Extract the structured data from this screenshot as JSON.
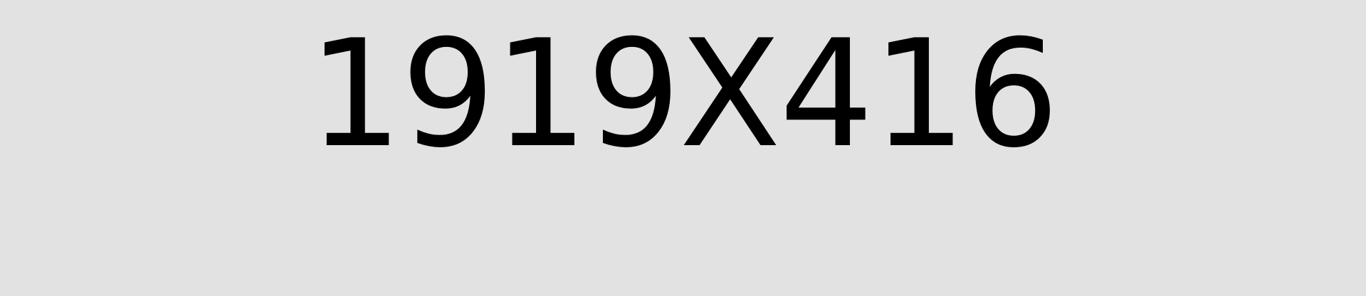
{
  "placeholder": {
    "text": "1919X416"
  },
  "colors": {
    "background": "#e2e2e2",
    "text": "#000000"
  }
}
